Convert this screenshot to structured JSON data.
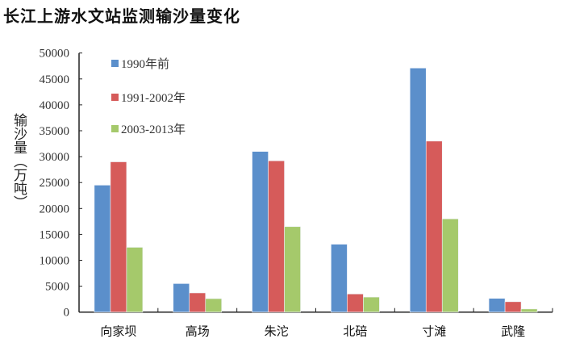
{
  "chart_data": {
    "type": "bar",
    "title": "长江上游水文站监测输沙量变化",
    "xlabel": "",
    "ylabel": "输沙量（万吨）",
    "ylim": [
      0,
      50000
    ],
    "yticks": [
      0,
      5000,
      10000,
      15000,
      20000,
      25000,
      30000,
      35000,
      40000,
      45000,
      50000
    ],
    "grid": false,
    "legend_position": "top-left",
    "categories": [
      "向家坝",
      "高场",
      "朱沱",
      "北碚",
      "寸滩",
      "武隆"
    ],
    "series": [
      {
        "name": "1990年前",
        "color": "#5b8fcb",
        "values": [
          24500,
          5500,
          31000,
          13100,
          47100,
          2650
        ]
      },
      {
        "name": "1991-2002年",
        "color": "#d65b5a",
        "values": [
          29000,
          3700,
          29200,
          3500,
          33000,
          2000
        ]
      },
      {
        "name": "2003-2013年",
        "color": "#a5c96b",
        "values": [
          12500,
          2600,
          16500,
          2900,
          18000,
          600
        ]
      }
    ]
  }
}
